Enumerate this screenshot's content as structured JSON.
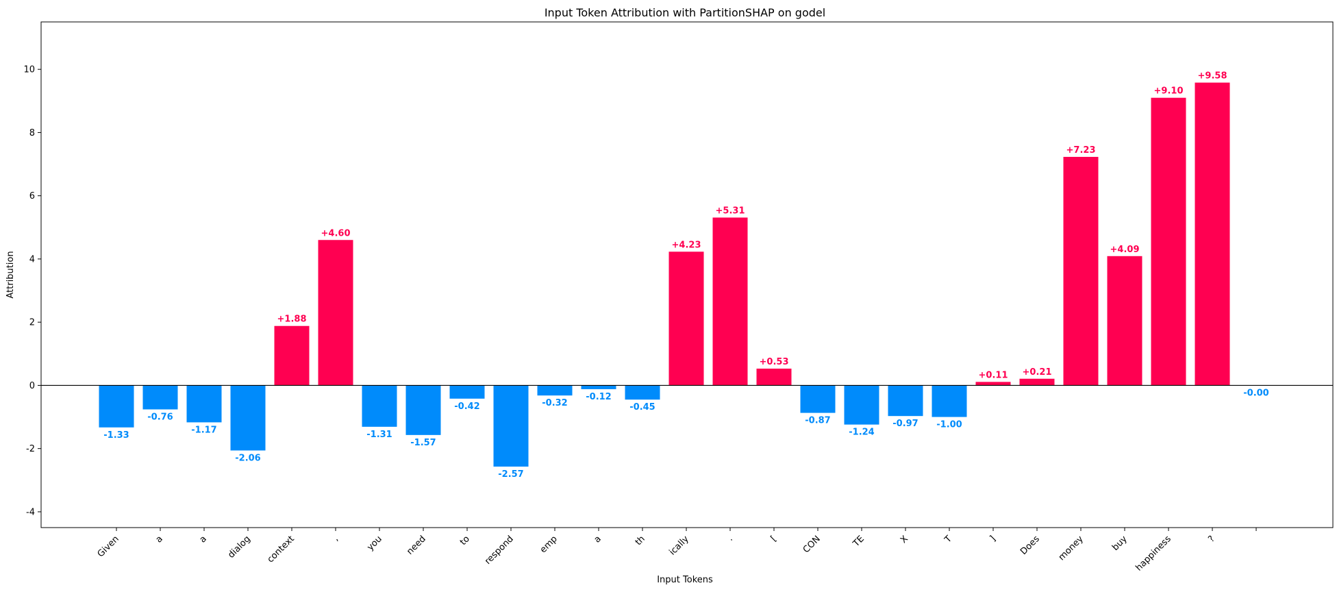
{
  "chart_data": {
    "type": "bar",
    "title": "Input Token Attribution with PartitionSHAP on godel",
    "xlabel": "Input Tokens",
    "ylabel": "Attribution",
    "ylim": [
      -4.5,
      11.5
    ],
    "yticks": [
      -4,
      -2,
      0,
      2,
      4,
      6,
      8,
      10
    ],
    "categories": [
      "Given",
      "a",
      "a",
      "dialog",
      "context",
      ",",
      "you",
      "need",
      "to",
      "respond",
      "emp",
      "a",
      "th",
      "ically",
      ".",
      "[",
      "CON",
      "TE",
      "X",
      "T",
      "]",
      "Does",
      "money",
      "buy",
      "happiness",
      "?",
      ""
    ],
    "values": [
      -1.33,
      -0.76,
      -1.17,
      -2.06,
      1.88,
      4.6,
      -1.31,
      -1.57,
      -0.42,
      -2.57,
      -0.32,
      -0.12,
      -0.45,
      4.23,
      5.31,
      0.53,
      -0.87,
      -1.24,
      -0.97,
      -1.0,
      0.11,
      0.21,
      7.23,
      4.09,
      9.1,
      9.58,
      -0.0
    ],
    "labels": [
      "-1.33",
      "-0.76",
      "-1.17",
      "-2.06",
      "+1.88",
      "+4.60",
      "-1.31",
      "-1.57",
      "-0.42",
      "-2.57",
      "-0.32",
      "-0.12",
      "-0.45",
      "+4.23",
      "+5.31",
      "+0.53",
      "-0.87",
      "-1.24",
      "-0.97",
      "-1.00",
      "+0.11",
      "+0.21",
      "+7.23",
      "+4.09",
      "+9.10",
      "+9.58",
      "-0.00"
    ],
    "colors": {
      "positive": "#ff0051",
      "negative": "#008bfb"
    },
    "grid": false,
    "zero_line": true
  }
}
